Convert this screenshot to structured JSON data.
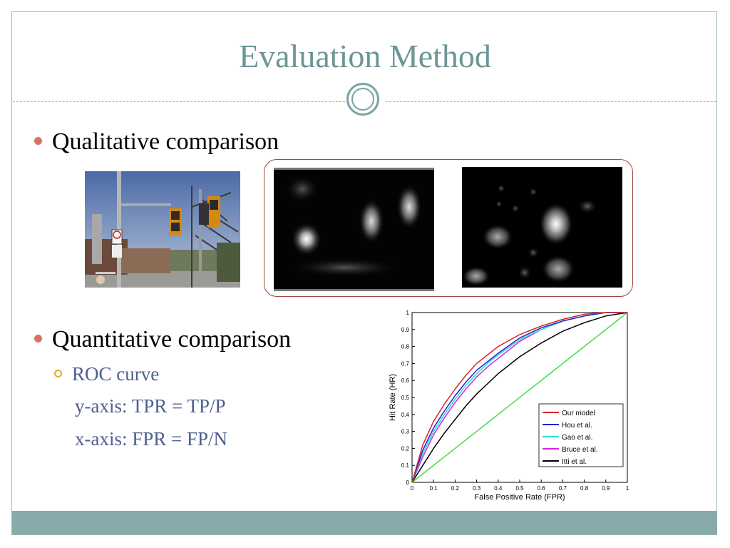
{
  "slide": {
    "title": "Evaluation Method",
    "bullets": [
      {
        "text": "Qualitative comparison"
      },
      {
        "text": "Quantitative comparison"
      }
    ],
    "sub_bullet": "ROC curve",
    "lines": [
      "y-axis: TPR = TP/P",
      "x-axis: FPR = FP/N"
    ]
  },
  "colors": {
    "title": "#6d9596",
    "accent_bullet": "#d9735c",
    "footer": "#87aaab",
    "sub_text": "#4e5f8f"
  },
  "chart_data": {
    "type": "line",
    "xlabel": "False Positive Rate (FPR)",
    "ylabel": "Hit Rate (HR)",
    "xlim": [
      0,
      1
    ],
    "ylim": [
      0,
      1
    ],
    "xticks": [
      "0",
      "0.1",
      "0.2",
      "0.3",
      "0.4",
      "0.5",
      "0.6",
      "0.7",
      "0.8",
      "0.9",
      "1"
    ],
    "yticks": [
      "0",
      "0.1",
      "0.2",
      "0.3",
      "0.4",
      "0.5",
      "0.6",
      "0.7",
      "0.8",
      "0.9",
      "1"
    ],
    "legend_position": "bottom-right",
    "series": [
      {
        "name": "Our model",
        "color": "#dd2222",
        "x": [
          0,
          0.05,
          0.1,
          0.15,
          0.2,
          0.25,
          0.3,
          0.35,
          0.4,
          0.5,
          0.6,
          0.7,
          0.8,
          0.9,
          0.95,
          1
        ],
        "y": [
          0,
          0.22,
          0.36,
          0.46,
          0.55,
          0.63,
          0.7,
          0.75,
          0.8,
          0.87,
          0.92,
          0.96,
          0.99,
          1,
          1,
          1
        ]
      },
      {
        "name": "Hou et al.",
        "color": "#2222cc",
        "x": [
          0,
          0.05,
          0.1,
          0.15,
          0.2,
          0.25,
          0.3,
          0.35,
          0.4,
          0.5,
          0.6,
          0.7,
          0.8,
          0.9,
          0.95,
          1
        ],
        "y": [
          0,
          0.19,
          0.32,
          0.42,
          0.51,
          0.59,
          0.66,
          0.71,
          0.76,
          0.85,
          0.91,
          0.95,
          0.98,
          1,
          1,
          1
        ]
      },
      {
        "name": "Gao et al.",
        "color": "#22dddd",
        "x": [
          0,
          0.05,
          0.1,
          0.15,
          0.2,
          0.25,
          0.3,
          0.35,
          0.4,
          0.5,
          0.6,
          0.7,
          0.8,
          0.9,
          0.95,
          1
        ],
        "y": [
          0,
          0.17,
          0.3,
          0.4,
          0.49,
          0.57,
          0.64,
          0.7,
          0.75,
          0.84,
          0.9,
          0.95,
          0.98,
          1,
          1,
          1
        ]
      },
      {
        "name": "Bruce et al.",
        "color": "#dd22dd",
        "x": [
          0,
          0.05,
          0.1,
          0.15,
          0.2,
          0.25,
          0.3,
          0.35,
          0.4,
          0.5,
          0.6,
          0.7,
          0.8,
          0.9,
          0.95,
          1
        ],
        "y": [
          0,
          0.15,
          0.28,
          0.38,
          0.47,
          0.55,
          0.62,
          0.68,
          0.73,
          0.83,
          0.9,
          0.95,
          0.98,
          1,
          1,
          1
        ]
      },
      {
        "name": "Itti et al.",
        "color": "#000000",
        "x": [
          0,
          0.05,
          0.1,
          0.15,
          0.2,
          0.25,
          0.3,
          0.35,
          0.4,
          0.5,
          0.6,
          0.7,
          0.8,
          0.9,
          0.95,
          1
        ],
        "y": [
          0,
          0.1,
          0.2,
          0.29,
          0.37,
          0.45,
          0.52,
          0.58,
          0.64,
          0.74,
          0.82,
          0.89,
          0.94,
          0.98,
          0.99,
          1
        ]
      },
      {
        "name": "",
        "color": "#44dd44",
        "x": [
          0,
          1
        ],
        "y": [
          0,
          1
        ]
      }
    ]
  }
}
